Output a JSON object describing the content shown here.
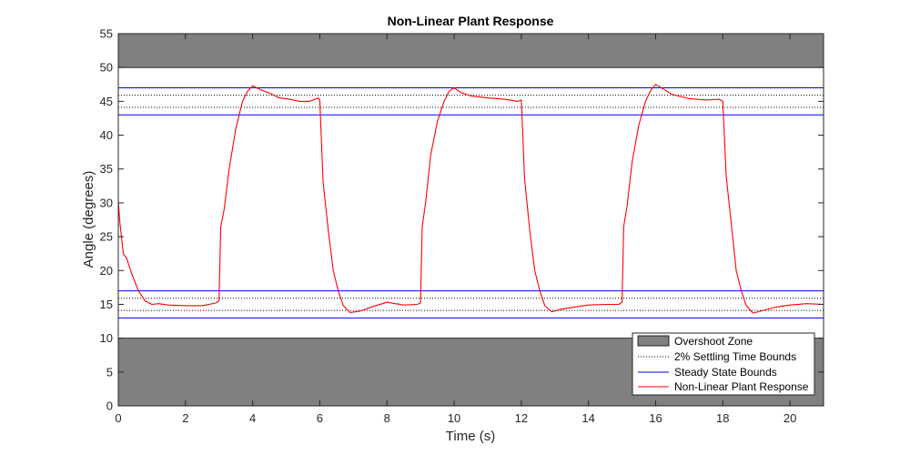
{
  "chart_data": {
    "type": "line",
    "title": "Non-Linear Plant Response",
    "xlabel": "Time (s)",
    "ylabel": "Angle (degrees)",
    "xlim": [
      0,
      21
    ],
    "ylim": [
      0,
      55
    ],
    "xticks": [
      0,
      2,
      4,
      6,
      8,
      10,
      12,
      14,
      16,
      18,
      20
    ],
    "yticks": [
      0,
      5,
      10,
      15,
      20,
      25,
      30,
      35,
      40,
      45,
      50,
      55
    ],
    "grid": false,
    "legend_position": "bottom-right",
    "overshoot_zones": [
      {
        "name": "Overshoot Zone",
        "from": 50,
        "to": 55,
        "color": "#808080"
      },
      {
        "name": "Overshoot Zone",
        "from": 0,
        "to": 10,
        "color": "#808080"
      }
    ],
    "settling_bounds": {
      "name": "2% Settling Time Bounds",
      "values": [
        44.1,
        45.9,
        14.1,
        15.9
      ],
      "color": "#000000",
      "style": "dotted"
    },
    "steady_state_bounds": {
      "name": "Steady State Bounds",
      "values": [
        43,
        47,
        13,
        17
      ],
      "color": "#0000ff"
    },
    "series": [
      {
        "name": "Non-Linear Plant Response",
        "color": "#ff0000",
        "x": [
          0,
          0.05,
          0.15,
          0.25,
          0.4,
          0.6,
          0.8,
          1.0,
          1.2,
          1.5,
          2.0,
          2.5,
          2.9,
          3.0,
          3.05,
          3.15,
          3.3,
          3.5,
          3.7,
          3.85,
          4.0,
          4.2,
          4.5,
          4.8,
          5.1,
          5.4,
          5.7,
          5.95,
          6.0,
          6.1,
          6.25,
          6.4,
          6.55,
          6.7,
          6.9,
          7.2,
          7.6,
          8.0,
          8.5,
          8.9,
          9.0,
          9.05,
          9.15,
          9.3,
          9.5,
          9.7,
          9.85,
          10.0,
          10.2,
          10.5,
          11.0,
          11.5,
          11.9,
          12.0,
          12.1,
          12.25,
          12.4,
          12.55,
          12.7,
          12.9,
          13.2,
          13.6,
          14.0,
          14.5,
          14.9,
          15.0,
          15.05,
          15.15,
          15.3,
          15.5,
          15.7,
          15.85,
          16.0,
          16.2,
          16.5,
          17.0,
          17.5,
          17.9,
          18.0,
          18.1,
          18.25,
          18.4,
          18.55,
          18.7,
          18.9,
          19.2,
          19.6,
          20.0,
          20.5,
          21.0
        ],
        "values": [
          30.2,
          27,
          22.5,
          21.8,
          19.5,
          17,
          15.5,
          15.0,
          15.1,
          14.9,
          14.8,
          14.8,
          15.2,
          15.5,
          26.5,
          29,
          35,
          41,
          45,
          46.5,
          47.3,
          46.8,
          46.2,
          45.5,
          45.3,
          45.0,
          45.0,
          45.5,
          45.2,
          33,
          26,
          20,
          17,
          14.8,
          13.8,
          14.0,
          14.7,
          15.3,
          14.9,
          15.0,
          15.2,
          26.5,
          30,
          37,
          42,
          45,
          46.5,
          47.0,
          46.3,
          45.8,
          45.5,
          45.3,
          45.0,
          45.2,
          33.5,
          26,
          20,
          17,
          14.8,
          13.9,
          14.3,
          14.6,
          14.9,
          15.0,
          15.0,
          15.3,
          26.5,
          29.5,
          36,
          41.5,
          45,
          46.6,
          47.5,
          46.9,
          46.0,
          45.4,
          45.2,
          45.3,
          45.0,
          34,
          27,
          20,
          17,
          14.8,
          13.7,
          14.1,
          14.6,
          14.9,
          15.1,
          15.0
        ]
      }
    ]
  }
}
